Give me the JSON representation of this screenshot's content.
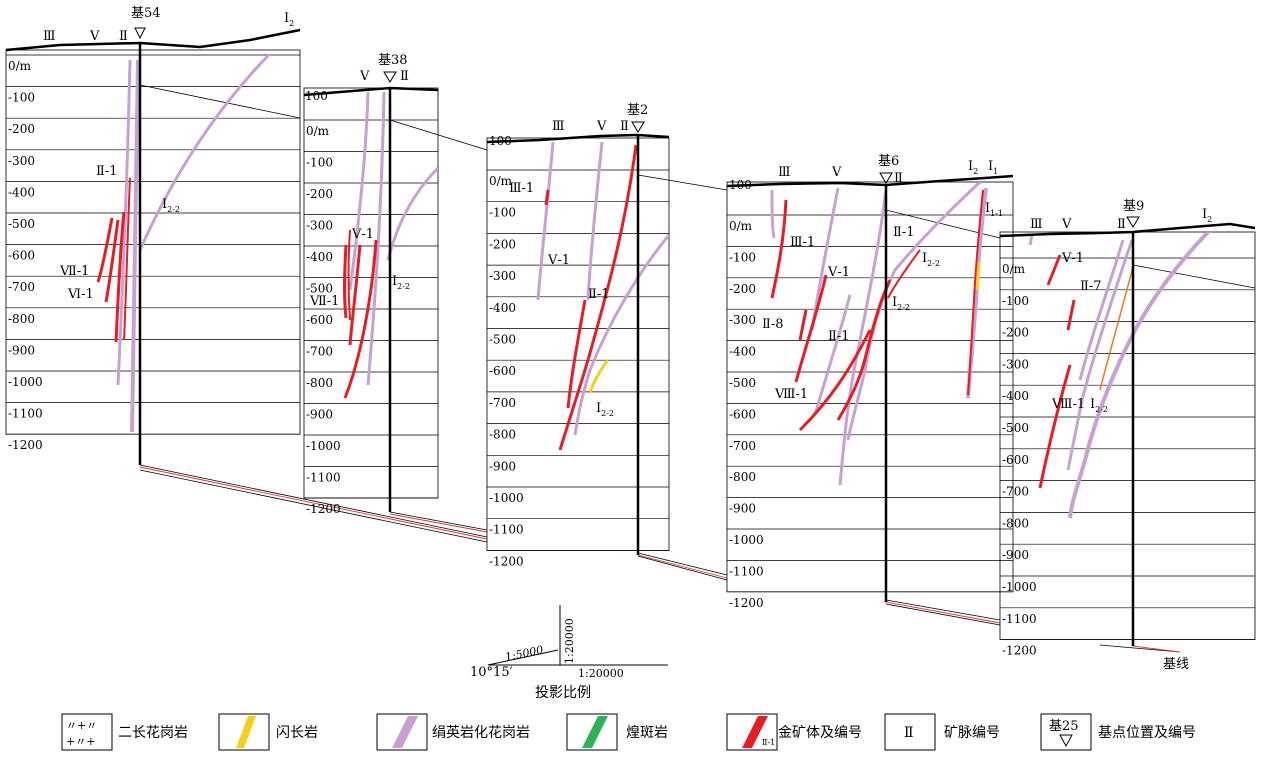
{
  "sections": [
    {
      "id": "sec1",
      "base_point": "基54",
      "top_label": "",
      "depths": [
        "0/m",
        "-100",
        "-200",
        "-300",
        "-400",
        "-500",
        "-600",
        "-700",
        "-800",
        "-900",
        "-1000",
        "-1100",
        "-1200"
      ],
      "veins_top": [
        {
          "label": "Ⅲ"
        },
        {
          "label": "Ⅴ"
        },
        {
          "label": "Ⅱ"
        }
      ],
      "side_labels": [
        {
          "text": "Ⅱ-1"
        },
        {
          "text": "Ⅰ",
          "sub": "2-2"
        },
        {
          "text": "Ⅶ-1"
        },
        {
          "text": "Ⅵ-1"
        },
        {
          "text": "Ⅰ",
          "sub": "2"
        }
      ]
    },
    {
      "id": "sec2",
      "base_point": "基38",
      "top_label": "100",
      "depths": [
        "0/m",
        "-100",
        "-200",
        "-300",
        "-400",
        "-500",
        "-600",
        "-700",
        "-800",
        "-900",
        "-1000",
        "-1100",
        "-1200"
      ],
      "veins_top": [
        {
          "label": "Ⅴ"
        },
        {
          "label": "Ⅱ"
        }
      ],
      "side_labels": [
        {
          "text": "Ⅴ-1"
        },
        {
          "text": "Ⅰ",
          "sub": "2-2"
        },
        {
          "text": "Ⅶ-1"
        }
      ]
    },
    {
      "id": "sec3",
      "base_point": "基2",
      "top_label": "100",
      "depths": [
        "0/m",
        "-100",
        "-200",
        "-300",
        "-400",
        "-500",
        "-600",
        "-700",
        "-800",
        "-900",
        "-1000",
        "-1100",
        "-1200"
      ],
      "veins_top": [
        {
          "label": "Ⅲ"
        },
        {
          "label": "Ⅴ"
        },
        {
          "label": "Ⅱ"
        }
      ],
      "side_labels": [
        {
          "text": "Ⅲ-1"
        },
        {
          "text": "Ⅴ-1"
        },
        {
          "text": "Ⅱ-1"
        },
        {
          "text": "Ⅰ",
          "sub": "2-2"
        }
      ]
    },
    {
      "id": "sec4",
      "base_point": "基6",
      "top_label": "100",
      "depths": [
        "0/m",
        "-100",
        "-200",
        "-300",
        "-400",
        "-500",
        "-600",
        "-700",
        "-800",
        "-900",
        "-1000",
        "-1100",
        "-1200"
      ],
      "veins_top": [
        {
          "label": "Ⅲ"
        },
        {
          "label": "Ⅴ"
        },
        {
          "label": "Ⅱ"
        },
        {
          "label": "Ⅰ",
          "sub": "2"
        },
        {
          "label": "Ⅰ",
          "sub": "1"
        }
      ],
      "side_labels": [
        {
          "text": "Ⅱ-1"
        },
        {
          "text": "Ⅲ-1"
        },
        {
          "text": "Ⅰ",
          "sub": "1-1"
        },
        {
          "text": "Ⅰ",
          "sub": "2-2"
        },
        {
          "text": "Ⅴ-1"
        },
        {
          "text": "Ⅱ-8"
        },
        {
          "text": "Ⅰ",
          "sub": "2-2"
        },
        {
          "text": "Ⅱ-1"
        },
        {
          "text": "Ⅷ-1"
        }
      ]
    },
    {
      "id": "sec5",
      "base_point": "基9",
      "top_label": "",
      "depths": [
        "0/m",
        "-100",
        "-200",
        "-300",
        "-400",
        "-500",
        "-600",
        "-700",
        "-800",
        "-900",
        "-1000",
        "-1100",
        "-1200"
      ],
      "veins_top": [
        {
          "label": "Ⅲ"
        },
        {
          "label": "Ⅴ"
        },
        {
          "label": "Ⅱ"
        },
        {
          "label": "Ⅰ",
          "sub": "2"
        }
      ],
      "side_labels": [
        {
          "text": "Ⅴ-1"
        },
        {
          "text": "Ⅱ-7"
        },
        {
          "text": "Ⅷ-1"
        },
        {
          "text": "Ⅰ",
          "sub": "2-2"
        }
      ]
    }
  ],
  "scale": {
    "angle": "10°15′",
    "h_ratio": "1:5000",
    "v_ratio": "1:20000",
    "base_ratio": "1:20000",
    "title": "投影比例"
  },
  "baseline_label": "基线",
  "legend": [
    {
      "key": "granite",
      "label": "二长花岗岩",
      "swatch": "granite"
    },
    {
      "key": "diorite",
      "label": "闪长岩",
      "swatch": "#f7d117"
    },
    {
      "key": "sericite",
      "label": "绢英岩化花岗岩",
      "swatch": "#c9a0d4"
    },
    {
      "key": "lamprophyre",
      "label": "煌斑岩",
      "swatch": "#2eb35a"
    },
    {
      "key": "ore",
      "label": "金矿体及编号",
      "swatch": "#e8242a",
      "tag": "Ⅱ-1"
    },
    {
      "key": "vein_no",
      "label": "矿脉编号",
      "box": "Ⅱ"
    },
    {
      "key": "base_point",
      "label": "基点位置及编号",
      "box": "基25"
    }
  ],
  "colors": {
    "ore": "#e41e25",
    "sericite": "#c8a0d2",
    "diorite": "#f5cf1a",
    "lamprophyre": "#2fb25a",
    "link": "#e0352b"
  }
}
